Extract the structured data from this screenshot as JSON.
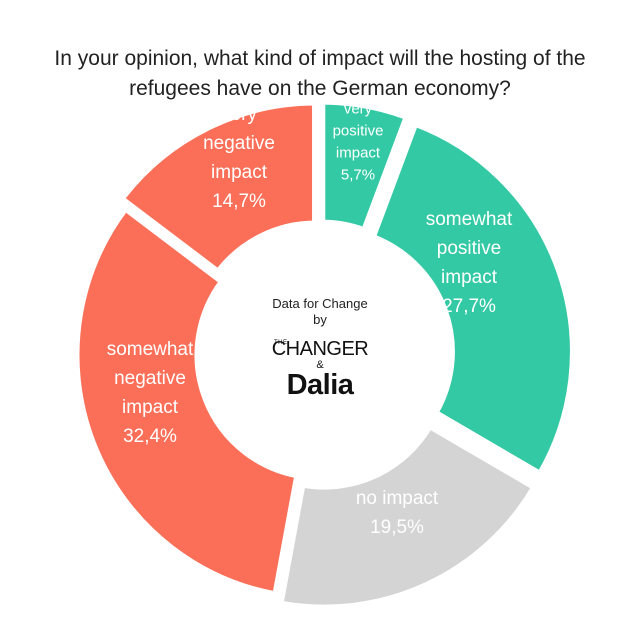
{
  "chart_data": {
    "type": "pie",
    "variant": "donut",
    "title": "In your opinion, what kind of impact will the hosting of the refugees have on the German economy?",
    "title_lines": [
      "In your opinion, what kind of impact will the hosting of the",
      "refugees have on the German economy?"
    ],
    "slices": [
      {
        "label_lines": [
          "very",
          "positive",
          "impact",
          "5,7%"
        ],
        "value": 5.7,
        "color": "#33c9a4"
      },
      {
        "label_lines": [
          "somewhat",
          "positive",
          "impact",
          "27,7%"
        ],
        "value": 27.7,
        "color": "#33c9a4"
      },
      {
        "label_lines": [
          "no impact",
          "19,5%"
        ],
        "value": 19.5,
        "color": "#d4d4d4"
      },
      {
        "label_lines": [
          "somewhat",
          "negative",
          "impact",
          "32,4%"
        ],
        "value": 32.4,
        "color": "#fb6e57"
      },
      {
        "label_lines": [
          "very",
          "negative",
          "impact",
          "14,7%"
        ],
        "value": 14.7,
        "color": "#fb6e57"
      }
    ],
    "legend": "none",
    "center": {
      "caption_lines": [
        "Data for Change",
        "by"
      ],
      "logo_the": "THE",
      "logo_changer": "CHANGER",
      "logo_amp": "&",
      "logo_dalia": "Dalia"
    }
  }
}
